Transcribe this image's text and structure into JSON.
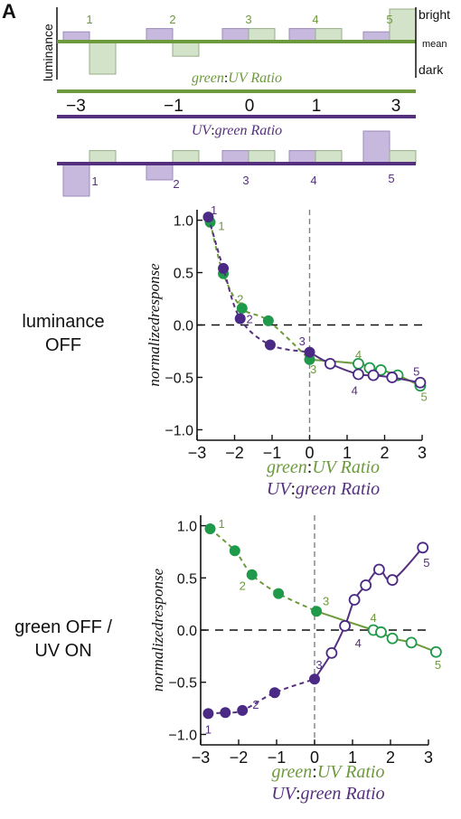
{
  "panel_label": "A",
  "colors": {
    "green": "#6d9a3c",
    "purple": "#55307f",
    "green_fill": "#d3e3c9",
    "purple_fill": "#c7b9de",
    "green_marker": "#1f9a4a",
    "purple_marker": "#4a2a85",
    "gray": "#808080"
  },
  "schematic": {
    "y_axis_label": "luminance",
    "level_labels": {
      "bright": "bright",
      "mean": "mean",
      "dark": "dark"
    },
    "green_to_uv_label": {
      "a": "green",
      "colon": ":",
      "b": "UV Ratio"
    },
    "uv_to_green_label": {
      "a": "UV",
      "colon": ":",
      "b": "green Ratio"
    },
    "ratio_ticks": [
      "−3",
      "−1",
      "0",
      "1",
      "3"
    ],
    "stimuli_top": [
      {
        "label": "1",
        "uv": 0.3,
        "green": -1.0
      },
      {
        "label": "2",
        "uv": 0.4,
        "green": -0.45
      },
      {
        "label": "3",
        "uv": 0.4,
        "green": 0.4
      },
      {
        "label": "4",
        "uv": 0.4,
        "green": 0.4
      },
      {
        "label": "5",
        "uv": 0.3,
        "green": 1.0
      }
    ],
    "stimuli_bottom": [
      {
        "label": "1",
        "uv": -1.0,
        "green": 0.4
      },
      {
        "label": "2",
        "uv": -0.5,
        "green": 0.4
      },
      {
        "label": "3",
        "uv": 0.4,
        "green": 0.4
      },
      {
        "label": "4",
        "uv": 0.4,
        "green": 0.4
      },
      {
        "label": "5",
        "uv": 1.0,
        "green": 0.4
      }
    ]
  },
  "chart_data": [
    {
      "type": "scatter",
      "row_label": "luminance OFF",
      "ylabel": "normalizedresponse",
      "xlabel_green": {
        "a": "green",
        "colon": ":",
        "b": "UV Ratio"
      },
      "xlabel_uv": {
        "a": "UV",
        "colon": ":",
        "b": "green Ratio"
      },
      "xlim": [
        -3,
        3
      ],
      "ylim": [
        -1.1,
        1.1
      ],
      "xticks": [
        -3,
        -2,
        -1,
        0,
        1,
        2,
        3
      ],
      "xtick_labels": [
        "−3",
        "−2",
        "−1",
        "0",
        "1",
        "2",
        "3"
      ],
      "yticks": [
        1.0,
        0.5,
        0.0,
        -0.5,
        -1.0
      ],
      "ytick_labels": [
        "1.0",
        "0.5",
        "0.0",
        "−0.5",
        "−1.0"
      ],
      "series": [
        {
          "color": "green",
          "filled": [
            [
              -2.65,
              0.98
            ],
            [
              -2.3,
              0.49
            ],
            [
              -1.8,
              0.16
            ],
            [
              -1.1,
              0.04
            ],
            [
              0,
              -0.33
            ]
          ],
          "open": [
            [
              1.3,
              -0.37
            ],
            [
              1.6,
              -0.41
            ],
            [
              1.9,
              -0.43
            ],
            [
              2.35,
              -0.48
            ],
            [
              2.95,
              -0.58
            ]
          ],
          "labels": [
            {
              "text": "1",
              "x": -2.35,
              "y": 0.95
            },
            {
              "text": "2",
              "x": -1.85,
              "y": 0.25
            },
            {
              "text": "3",
              "x": 0.1,
              "y": -0.42
            },
            {
              "text": "4",
              "x": 1.3,
              "y": -0.28
            },
            {
              "text": "5",
              "x": 3.05,
              "y": -0.68
            }
          ]
        },
        {
          "color": "purple",
          "filled": [
            [
              -2.7,
              1.03
            ],
            [
              -2.3,
              0.54
            ],
            [
              -1.85,
              0.06
            ],
            [
              -1.05,
              -0.19
            ],
            [
              0,
              -0.26
            ]
          ],
          "open": [
            [
              0.55,
              -0.37
            ],
            [
              1.3,
              -0.47
            ],
            [
              1.7,
              -0.48
            ],
            [
              2.2,
              -0.5
            ],
            [
              2.95,
              -0.55
            ]
          ],
          "labels": [
            {
              "text": "1",
              "x": -2.55,
              "y": 1.1
            },
            {
              "text": "2",
              "x": -1.6,
              "y": 0.06
            },
            {
              "text": "3",
              "x": -0.2,
              "y": -0.15
            },
            {
              "text": "4",
              "x": 1.2,
              "y": -0.62
            },
            {
              "text": "5",
              "x": 2.85,
              "y": -0.44
            }
          ]
        }
      ]
    },
    {
      "type": "scatter",
      "row_label": "green OFF / UV ON",
      "ylabel": "normalizedresponse",
      "xlabel_green": {
        "a": "green",
        "colon": ":",
        "b": "UV Ratio"
      },
      "xlabel_uv": {
        "a": "UV",
        "colon": ":",
        "b": "green Ratio"
      },
      "xlim": [
        -3,
        3
      ],
      "ylim": [
        -1.1,
        1.1
      ],
      "xticks": [
        -3,
        -2,
        -1,
        0,
        1,
        2,
        3
      ],
      "xtick_labels": [
        "−3",
        "−2",
        "−1",
        "0",
        "1",
        "2",
        "3"
      ],
      "yticks": [
        1.0,
        0.5,
        0.0,
        -0.5,
        -1.0
      ],
      "ytick_labels": [
        "1.0",
        "0.5",
        "0.0",
        "−0.5",
        "−1.0"
      ],
      "series": [
        {
          "color": "green",
          "filled": [
            [
              -2.75,
              0.97
            ],
            [
              -2.1,
              0.76
            ],
            [
              -1.65,
              0.53
            ],
            [
              -0.95,
              0.35
            ],
            [
              0.05,
              0.18
            ]
          ],
          "open": [
            [
              1.55,
              0.0
            ],
            [
              1.75,
              -0.02
            ],
            [
              2.05,
              -0.08
            ],
            [
              2.55,
              -0.12
            ],
            [
              3.2,
              -0.21
            ]
          ],
          "labels": [
            {
              "text": "1",
              "x": -2.45,
              "y": 1.02
            },
            {
              "text": "2",
              "x": -1.9,
              "y": 0.43
            },
            {
              "text": "3",
              "x": 0.3,
              "y": 0.28
            },
            {
              "text": "4",
              "x": 1.55,
              "y": 0.12
            },
            {
              "text": "5",
              "x": 3.25,
              "y": -0.33
            }
          ]
        },
        {
          "color": "purple",
          "filled": [
            [
              -2.8,
              -0.8
            ],
            [
              -2.35,
              -0.79
            ],
            [
              -1.9,
              -0.77
            ],
            [
              -1.05,
              -0.6
            ],
            [
              0,
              -0.47
            ]
          ],
          "open": [
            [
              0.45,
              -0.22
            ],
            [
              0.8,
              0.04
            ],
            [
              1.05,
              0.29
            ],
            [
              1.35,
              0.43
            ],
            [
              1.7,
              0.58
            ],
            [
              2.05,
              0.48
            ],
            [
              2.85,
              0.79
            ]
          ],
          "labels": [
            {
              "text": "1",
              "x": -2.8,
              "y": -0.95
            },
            {
              "text": "2",
              "x": -1.55,
              "y": -0.71
            },
            {
              "text": "3",
              "x": 0.12,
              "y": -0.33
            },
            {
              "text": "4",
              "x": 1.15,
              "y": -0.12
            },
            {
              "text": "5",
              "x": 2.95,
              "y": 0.65
            }
          ]
        }
      ]
    }
  ]
}
